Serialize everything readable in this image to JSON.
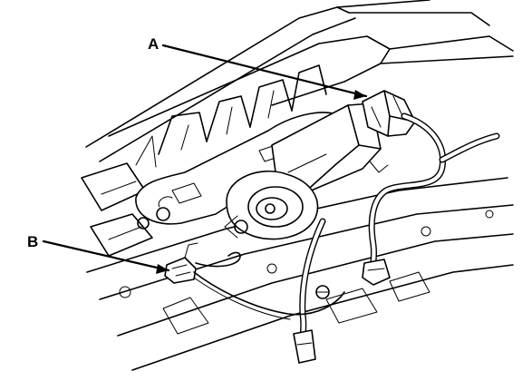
{
  "callouts": {
    "a": {
      "label": "A"
    },
    "b": {
      "label": "B"
    }
  }
}
